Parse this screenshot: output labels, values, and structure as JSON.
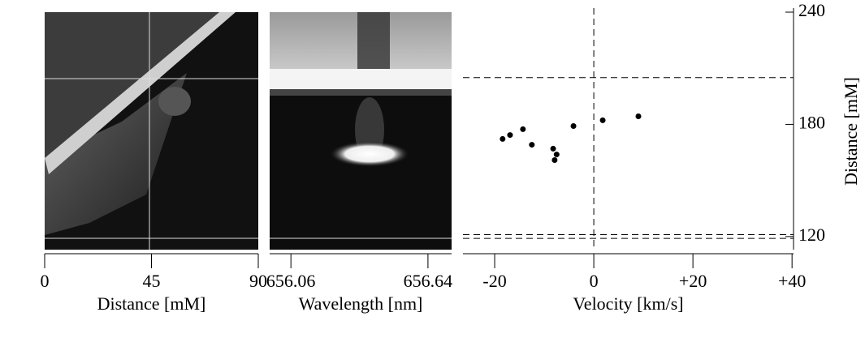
{
  "chart_data": [
    {
      "type": "image",
      "xlabel": "Distance [mM]",
      "xlim": [
        0,
        90
      ],
      "xticks": [
        0,
        45,
        90
      ]
    },
    {
      "type": "image",
      "xlabel": "Wavelength [nm]",
      "xlim": [
        655.97,
        656.74
      ],
      "xticks": [
        656.06,
        656.64
      ]
    },
    {
      "type": "scatter",
      "xlabel": "Velocity [km/s]",
      "ylabel": "Distance [mM]",
      "xlim": [
        -26.4,
        40.3
      ],
      "ylim": [
        113,
        240
      ],
      "xticks": [
        -20,
        0,
        {
          "value": 20,
          "label": "+20"
        },
        {
          "value": 40,
          "label": "+40"
        }
      ],
      "yticks": [
        120,
        180,
        240
      ],
      "vlines": [
        0
      ],
      "hlines": [
        205,
        121,
        119
      ],
      "color": "#000000",
      "x": [
        -18.4,
        -16.9,
        -14.3,
        -12.5,
        -8.2,
        -7.5,
        -7.9,
        -4.1,
        1.8,
        9.0
      ],
      "y": [
        172.2,
        174.3,
        177.4,
        169.1,
        167.0,
        163.9,
        160.9,
        179.1,
        182.2,
        184.3
      ]
    }
  ]
}
